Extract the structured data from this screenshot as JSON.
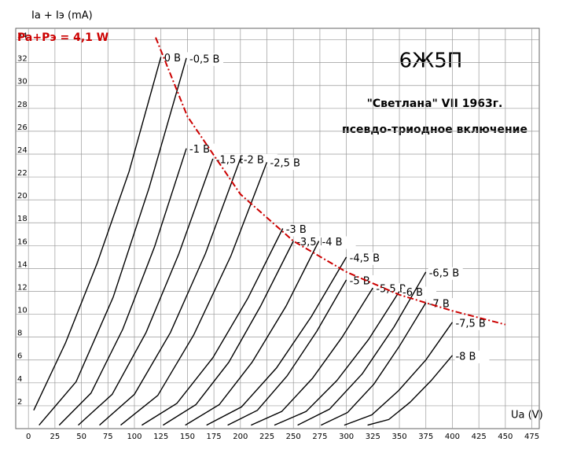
{
  "chart_data": {
    "type": "line",
    "title": "6Ж5П",
    "subtitle": [
      "\"Светлана\"  VII 1963г.",
      "псевдо-триодное включение"
    ],
    "y_label": "Ia + Iэ (mA)",
    "x_label": "Ua (V)",
    "xlim": [
      -12,
      482
    ],
    "ylim": [
      0,
      35
    ],
    "xticks": [
      0,
      25,
      50,
      75,
      100,
      125,
      150,
      175,
      200,
      225,
      250,
      275,
      300,
      325,
      350,
      375,
      400,
      425,
      450,
      475
    ],
    "yticks": [
      2,
      4,
      6,
      8,
      10,
      12,
      14,
      16,
      18,
      20,
      22,
      24,
      26,
      28,
      30,
      32,
      34
    ],
    "grid": true,
    "series": [
      {
        "name": "0 В",
        "color": "#000000",
        "x": [
          5,
          35,
          65,
          95,
          125
        ],
        "values": [
          1.6,
          7.5,
          14.5,
          22.5,
          32.5
        ]
      },
      {
        "name": "-0,5 В",
        "color": "#000000",
        "x": [
          10,
          45,
          80,
          114,
          149
        ],
        "values": [
          0.3,
          4.1,
          11.5,
          21.1,
          32.4
        ]
      },
      {
        "name": "-1 В",
        "color": "#000000",
        "x": [
          29,
          59,
          89,
          119,
          149
        ],
        "values": [
          0.3,
          3.1,
          8.7,
          15.9,
          24.5
        ]
      },
      {
        "name": "-1,5 В",
        "color": "#000000",
        "x": [
          47,
          79,
          111,
          142,
          174
        ],
        "values": [
          0.3,
          3,
          8.4,
          15.3,
          23.6
        ]
      },
      {
        "name": "-2 В",
        "color": "#000000",
        "x": [
          67,
          100,
          134,
          167,
          200
        ],
        "values": [
          0.3,
          3,
          8.4,
          15.3,
          23.6
        ]
      },
      {
        "name": "-2,5 В",
        "color": "#000000",
        "x": [
          87,
          122,
          156,
          191,
          225
        ],
        "values": [
          0.3,
          2.9,
          8.2,
          15.1,
          23.3
        ]
      },
      {
        "name": "-3 В",
        "color": "#000000",
        "x": [
          107,
          140,
          174,
          207,
          240
        ],
        "values": [
          0.3,
          2.2,
          6.2,
          11.4,
          17.5
        ]
      },
      {
        "name": "-3,5 В",
        "color": "#000000",
        "x": [
          127,
          158,
          189,
          219,
          250
        ],
        "values": [
          0.3,
          2.1,
          5.8,
          10.7,
          16.4
        ]
      },
      {
        "name": "-4 В",
        "color": "#000000",
        "x": [
          148,
          180,
          211,
          243,
          274
        ],
        "values": [
          0.3,
          2.1,
          5.8,
          10.7,
          16.4
        ]
      },
      {
        "name": "-4,5 В",
        "color": "#000000",
        "x": [
          168,
          201,
          234,
          267,
          300
        ],
        "values": [
          0.3,
          1.9,
          5.3,
          9.8,
          15
        ]
      },
      {
        "name": "-5 В",
        "color": "#000000",
        "x": [
          188,
          216,
          244,
          272,
          300
        ],
        "values": [
          0.3,
          1.6,
          4.6,
          8.5,
          13
        ]
      },
      {
        "name": "-5,5 В",
        "color": "#000000",
        "x": [
          210,
          239,
          268,
          296,
          325
        ],
        "values": [
          0.3,
          1.5,
          4.4,
          8,
          12.3
        ]
      },
      {
        "name": "-6 В",
        "color": "#000000",
        "x": [
          232,
          262,
          291,
          321,
          350
        ],
        "values": [
          0.3,
          1.5,
          4.2,
          7.8,
          12
        ]
      },
      {
        "name": "-6,5 В",
        "color": "#000000",
        "x": [
          254,
          284,
          315,
          345,
          375
        ],
        "values": [
          0.3,
          1.7,
          4.8,
          8.9,
          13.7
        ]
      },
      {
        "name": "-7 В",
        "color": "#000000",
        "x": [
          276,
          301,
          326,
          350,
          375
        ],
        "values": [
          0.3,
          1.4,
          3.9,
          7.2,
          11
        ]
      },
      {
        "name": "-7,5 В",
        "color": "#000000",
        "x": [
          298,
          324,
          349,
          375,
          400
        ],
        "values": [
          0.3,
          1.2,
          3.3,
          6,
          9.3
        ]
      },
      {
        "name": "-8 В",
        "color": "#000000",
        "x": [
          320,
          340,
          360,
          380,
          400
        ],
        "values": [
          0.3,
          0.8,
          2.3,
          4.2,
          6.4
        ]
      },
      {
        "name": "Pa+Pэ = 4,1 W",
        "color": "#cc0000",
        "dashed": true,
        "x": [
          120,
          150,
          200,
          250,
          300,
          350,
          400,
          450
        ],
        "values": [
          34.2,
          27.3,
          20.5,
          16.4,
          13.7,
          11.7,
          10.3,
          9.1
        ]
      }
    ]
  }
}
